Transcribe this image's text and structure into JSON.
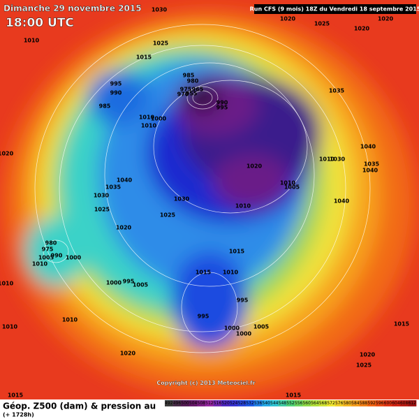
{
  "header": {
    "date": "Dimanche 29 novembre 2015",
    "time": "18:00 UTC",
    "run": "Run CFS (9 mois) 18Z du Vendredi 18 septembre 2015"
  },
  "map": {
    "copyright": "Copyright (c) 2013 Meteociel.fr",
    "isobar_labels": [
      "1030",
      "1020",
      "1025",
      "1020",
      "1020",
      "1010",
      "1025",
      "1015",
      "995",
      "990",
      "985",
      "985",
      "980",
      "975",
      "970",
      "965",
      "955",
      "990",
      "995",
      "1035",
      "1010",
      "1010",
      "1000",
      "1020",
      "1040",
      "1010",
      "1030",
      "1035",
      "1040",
      "1020",
      "1040",
      "1035",
      "1010",
      "1005",
      "1040",
      "1030",
      "1010",
      "1030",
      "1025",
      "1025",
      "1020",
      "1015",
      "980",
      "975",
      "990",
      "1005",
      "1000",
      "1010",
      "1015",
      "1010",
      "1000",
      "995",
      "1005",
      "1010",
      "995",
      "995",
      "1015",
      "1010",
      "1010",
      "1000",
      "1005",
      "1000",
      "1020",
      "1020",
      "1025",
      "1015",
      "1015"
    ]
  },
  "footer": {
    "title": "Géop. Z500 (dam) & pression au",
    "lead": "(+ 1728h)",
    "scale": [
      492,
      496,
      500,
      504,
      508,
      512,
      516,
      520,
      524,
      528,
      532,
      536,
      540,
      544,
      548,
      552,
      556,
      560,
      564,
      568,
      572,
      576,
      580,
      584,
      588,
      592,
      596,
      600,
      604,
      608,
      612
    ]
  }
}
